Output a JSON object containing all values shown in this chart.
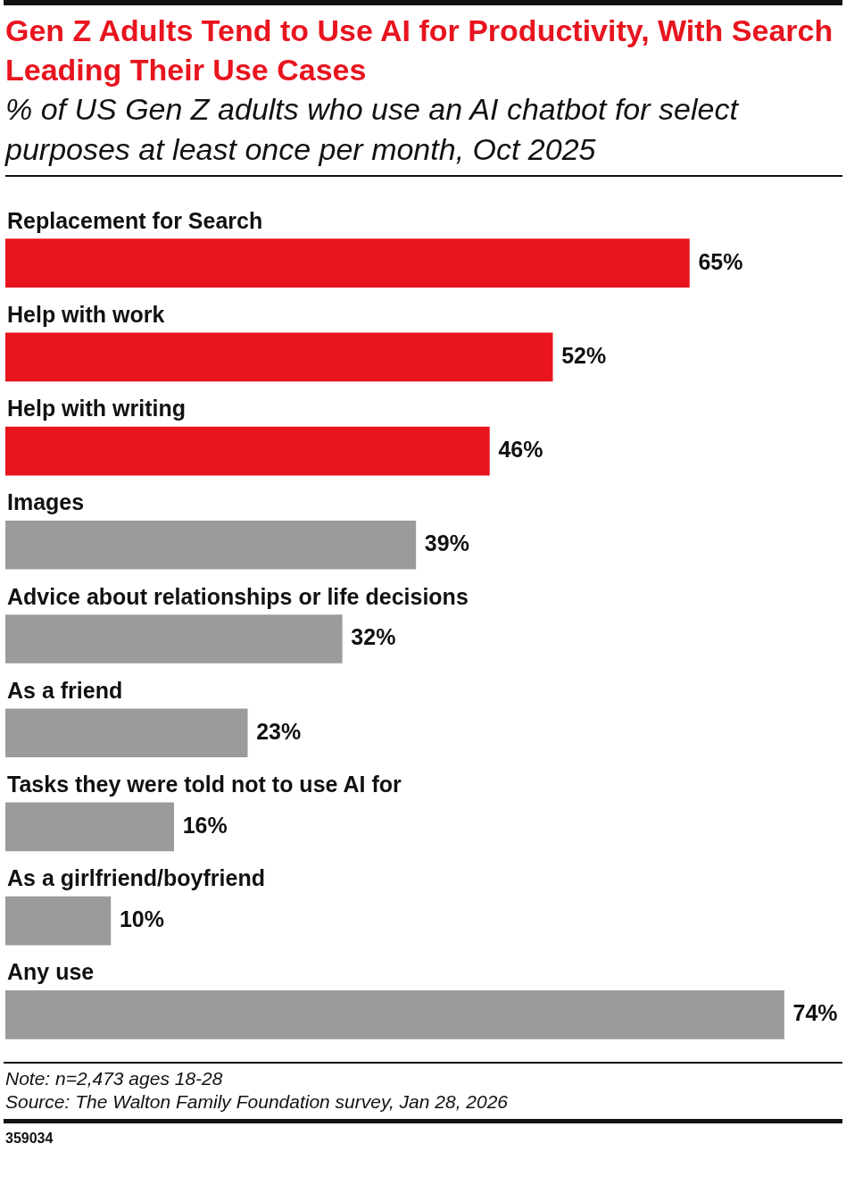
{
  "chart_data": {
    "type": "bar",
    "orientation": "horizontal",
    "title": "Gen Z Adults Tend to Use AI for Productivity, With Search Leading Their Use Cases",
    "subtitle": "% of US Gen Z adults who use an AI chatbot for select purposes at least once per month, Oct 2025",
    "categories": [
      "Replacement for Search",
      "Help with work",
      "Help with writing",
      "Images",
      "Advice about relationships or life decisions",
      "As a friend",
      "Tasks they were told not to use AI for",
      "As a girlfriend/boyfriend",
      "Any use"
    ],
    "values": [
      65,
      52,
      46,
      39,
      32,
      23,
      16,
      10,
      74
    ],
    "colors": [
      "#e8141e",
      "#e8141e",
      "#e8141e",
      "#9b9b9b",
      "#9b9b9b",
      "#9b9b9b",
      "#9b9b9b",
      "#9b9b9b",
      "#9b9b9b"
    ],
    "value_labels": [
      "65%",
      "52%",
      "46%",
      "39%",
      "32%",
      "23%",
      "16%",
      "10%",
      "74%"
    ],
    "legend": false,
    "annotations": [
      "Note: n=2,473 ages 18-28",
      "Source: The Walton Family Foundation survey, Jan 28, 2026",
      "359034"
    ]
  }
}
